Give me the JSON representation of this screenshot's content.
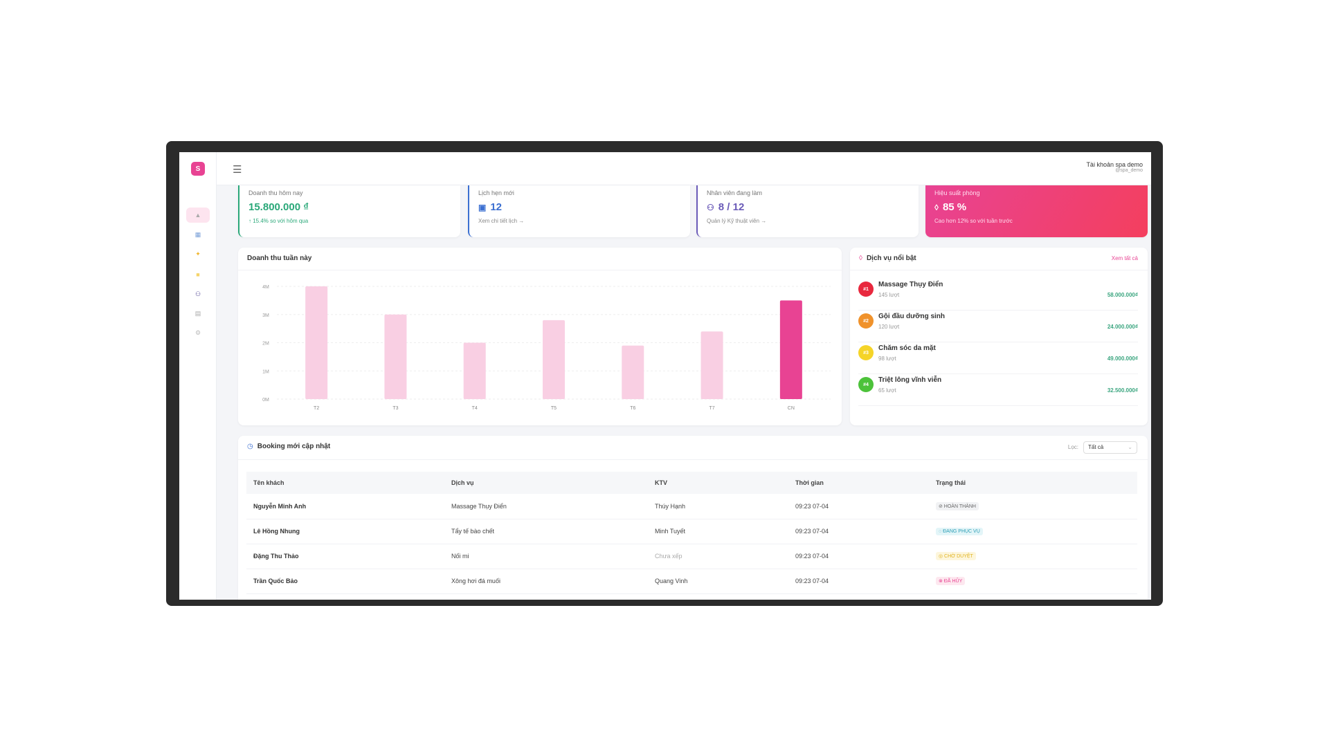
{
  "logo": "S",
  "user": {
    "name": "Tài khoản spa demo",
    "handle": "@spa_demo"
  },
  "sidebar": {
    "items": [
      {
        "icon": "chart-icon",
        "active": true
      },
      {
        "icon": "calendar-icon"
      },
      {
        "icon": "sparkle-icon"
      },
      {
        "icon": "box-icon"
      },
      {
        "icon": "users-icon"
      },
      {
        "icon": "report-icon"
      },
      {
        "icon": "gear-icon"
      }
    ]
  },
  "stats": [
    {
      "label": "Doanh thu hôm nay",
      "value": "15.800.000 ₫",
      "sub": "↑ 15.4% so với hôm qua",
      "color": "#2aa879"
    },
    {
      "label": "Lịch hẹn mới",
      "value": "12",
      "sub": "Xem chi tiết lịch →",
      "color": "#3b6fd1",
      "icon": "calendar-icon"
    },
    {
      "label": "Nhân viên đang làm",
      "value": "8 / 12",
      "sub": "Quản lý Kỹ thuật viên →",
      "color": "#6b5bb8",
      "icon": "users-icon"
    },
    {
      "label": "Hiệu suất phòng",
      "value": "85 %",
      "sub": "Cao hơn 12% so với tuần trước",
      "icon": "drop-icon"
    }
  ],
  "chart_data": {
    "type": "bar",
    "title": "Doanh thu tuần này",
    "categories": [
      "T2",
      "T3",
      "T4",
      "T5",
      "T6",
      "T7",
      "CN"
    ],
    "values": [
      4.0,
      3.0,
      2.0,
      2.8,
      1.9,
      2.4,
      3.5
    ],
    "yticks": [
      "0M",
      "1M",
      "2M",
      "3M",
      "4M"
    ],
    "ylim": [
      0,
      4
    ],
    "unit": "M",
    "grid": true,
    "highlight": "CN",
    "colors": {
      "bar": "#f9cfe3",
      "highlight": "#e84393"
    }
  },
  "services": {
    "title": "Dịch vụ nổi bật",
    "view_all": "Xem tất cả",
    "items": [
      {
        "rank": "#1",
        "name": "Massage Thụy Điển",
        "count": "145 lượt",
        "amount": "58.000.000₫",
        "color": "#e8283e"
      },
      {
        "rank": "#2",
        "name": "Gội đầu dưỡng sinh",
        "count": "120 lượt",
        "amount": "24.000.000₫",
        "color": "#f0922b"
      },
      {
        "rank": "#3",
        "name": "Chăm sóc da mặt",
        "count": "98 lượt",
        "amount": "49.000.000₫",
        "color": "#f5d428"
      },
      {
        "rank": "#4",
        "name": "Triệt lông vĩnh viễn",
        "count": "65 lượt",
        "amount": "32.500.000₫",
        "color": "#4cc23a"
      }
    ]
  },
  "bookings": {
    "title": "Booking mới cập nhật",
    "filter_label": "Lọc:",
    "filter_value": "Tất cả",
    "columns": [
      "Tên khách",
      "Dịch vụ",
      "KTV",
      "Thời gian",
      "Trạng thái"
    ],
    "rows": [
      {
        "name": "Nguyễn Minh Anh",
        "service": "Massage Thụy Điển",
        "ktv": "Thúy Hạnh",
        "time": "09:23 07-04",
        "status": "⊘ HOÀN THÀNH",
        "sbg": "#f1f2f4",
        "sfg": "#666"
      },
      {
        "name": "Lê Hồng Nhung",
        "service": "Tẩy tế bào chết",
        "ktv": "Minh Tuyết",
        "time": "09:23 07-04",
        "status": "◌ ĐANG PHỤC VỤ",
        "sbg": "#e3f5f8",
        "sfg": "#2a9db5"
      },
      {
        "name": "Đặng Thu Thảo",
        "service": "Nối mi",
        "ktv": "Chưa xếp",
        "time": "09:23 07-04",
        "status": "◎ CHỜ DUYỆT",
        "sbg": "#fdf6dc",
        "sfg": "#e0b21e"
      },
      {
        "name": "Trần Quốc Bảo",
        "service": "Xông hơi đá muối",
        "ktv": "Quang Vinh",
        "time": "09:23 07-04",
        "status": "⊗ ĐÃ HỦY",
        "sbg": "#fde8ef",
        "sfg": "#e84393"
      }
    ]
  }
}
